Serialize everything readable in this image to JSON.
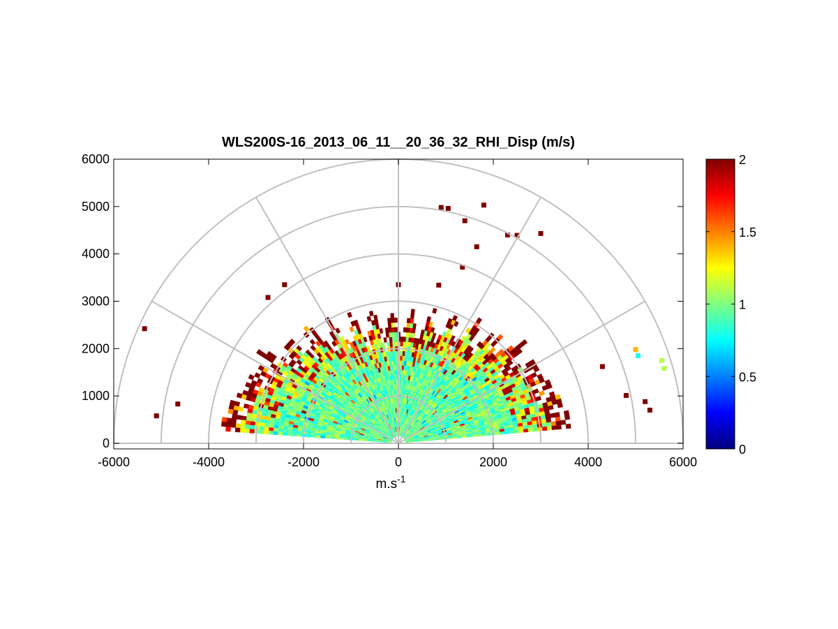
{
  "chart_data": {
    "type": "heatmap",
    "subtype": "polar RHI (range-height indicator) sector",
    "title": "WLS200S-16_2013_06_11__20_36_32_RHI_Disp (m/s)",
    "xlabel_main": "m.s",
    "xlabel_sup": "-1",
    "ylabel": "",
    "xlim": [
      -6000,
      6000
    ],
    "ylim": [
      -100,
      6000
    ],
    "x_ticks": [
      -6000,
      -4000,
      -2000,
      0,
      2000,
      4000,
      6000
    ],
    "x_tick_labels": [
      "-6000",
      "-4000",
      "-2000",
      "0",
      "2000",
      "4000",
      "6000"
    ],
    "y_ticks": [
      0,
      1000,
      2000,
      3000,
      4000,
      5000,
      6000
    ],
    "y_tick_labels": [
      "0",
      "1000",
      "2000",
      "3000",
      "4000",
      "5000",
      "6000"
    ],
    "polar_grid": {
      "range_rings": [
        1000,
        2000,
        3000,
        4000,
        5000,
        6000
      ],
      "spokes_deg": [
        0,
        30,
        60,
        90,
        120,
        150,
        180
      ]
    },
    "colorbar": {
      "colormap": "jet",
      "clim": [
        0,
        2
      ],
      "ticks": [
        0,
        0.5,
        1,
        1.5,
        2
      ],
      "tick_labels": [
        "0",
        "0.5",
        "1",
        "1.5",
        "2"
      ]
    },
    "data_extent": {
      "dense_region_max_range_m": 3200,
      "dense_elevation_deg": [
        5,
        175
      ],
      "typical_value": 0.95,
      "edge_value": 2,
      "note": "dense cone of ~0.8-1.2 m/s values out to ~2500-3200 m, saturated (>=2) values at outer edge, sparse saturated pixels up to ~5600 m"
    },
    "sparse_points": [
      {
        "x": -5350,
        "y": 2420,
        "v": 2
      },
      {
        "x": -5100,
        "y": 580,
        "v": 2
      },
      {
        "x": -4650,
        "y": 830,
        "v": 2
      },
      {
        "x": -2750,
        "y": 3080,
        "v": 2
      },
      {
        "x": -2400,
        "y": 3350,
        "v": 2
      },
      {
        "x": 0,
        "y": 3350,
        "v": 2
      },
      {
        "x": 850,
        "y": 3340,
        "v": 2
      },
      {
        "x": 900,
        "y": 4980,
        "v": 2
      },
      {
        "x": 1050,
        "y": 4960,
        "v": 2
      },
      {
        "x": 1400,
        "y": 4700,
        "v": 2
      },
      {
        "x": 1650,
        "y": 4150,
        "v": 2
      },
      {
        "x": 1350,
        "y": 3720,
        "v": 2
      },
      {
        "x": 1800,
        "y": 5030,
        "v": 2
      },
      {
        "x": 2300,
        "y": 4400,
        "v": 2
      },
      {
        "x": 2500,
        "y": 4390,
        "v": 2
      },
      {
        "x": 3000,
        "y": 4430,
        "v": 2
      },
      {
        "x": 4300,
        "y": 1620,
        "v": 2
      },
      {
        "x": 4800,
        "y": 1010,
        "v": 2
      },
      {
        "x": 5000,
        "y": 1980,
        "v": 1.4
      },
      {
        "x": 5050,
        "y": 1850,
        "v": 0.8
      },
      {
        "x": 5200,
        "y": 880,
        "v": 2
      },
      {
        "x": 5300,
        "y": 700,
        "v": 2
      },
      {
        "x": 5550,
        "y": 1750,
        "v": 1.1
      },
      {
        "x": 5600,
        "y": 1580,
        "v": 1.1
      }
    ]
  }
}
